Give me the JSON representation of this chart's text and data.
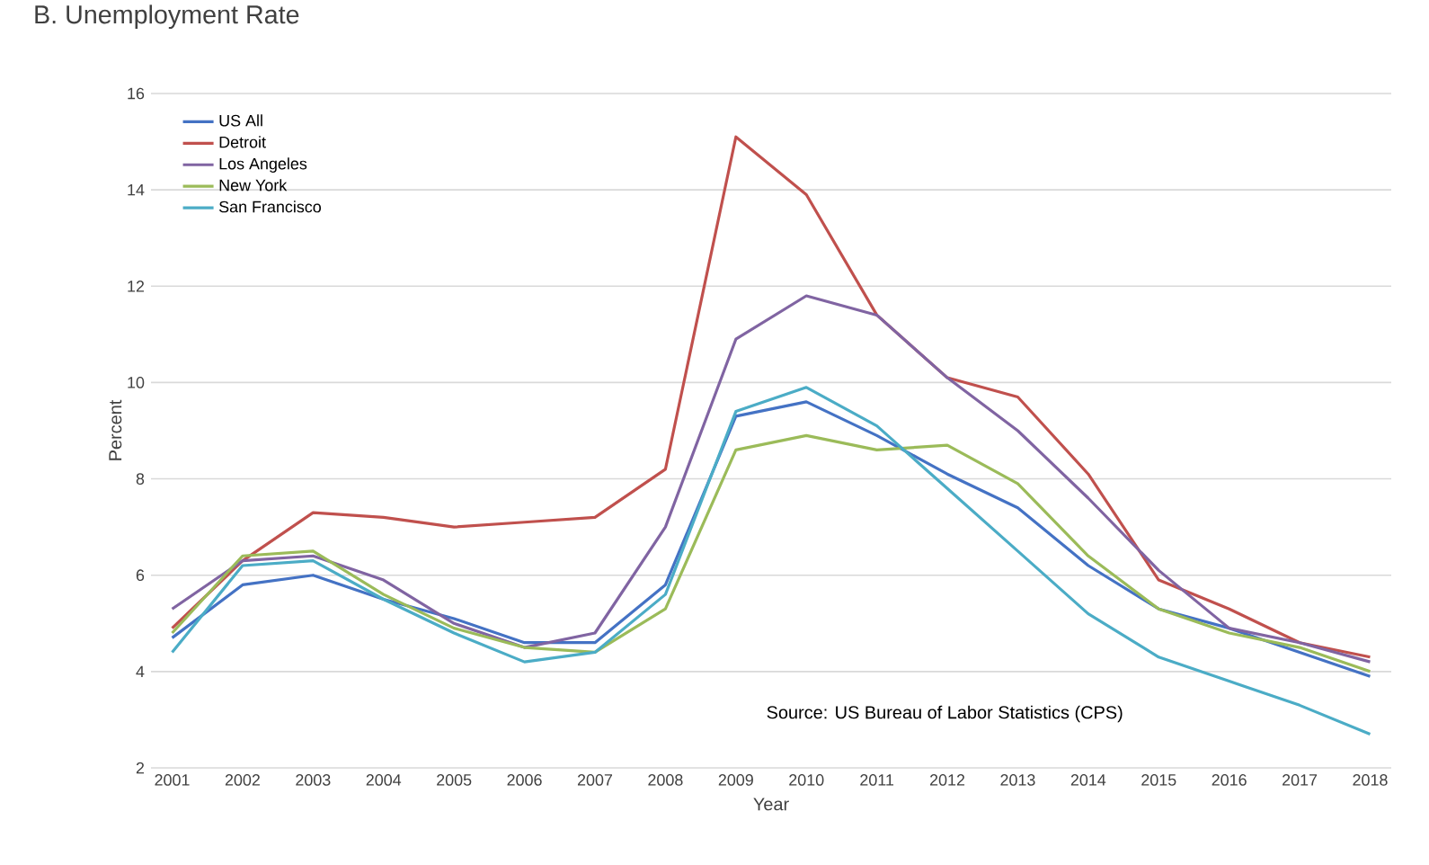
{
  "chart_data": {
    "type": "line",
    "title": "B. Unemployment Rate",
    "xlabel": "Year",
    "ylabel": "Percent",
    "categories": [
      "2001",
      "2002",
      "2003",
      "2004",
      "2005",
      "2006",
      "2007",
      "2008",
      "2009",
      "2010",
      "2011",
      "2012",
      "2013",
      "2014",
      "2015",
      "2016",
      "2017",
      "2018"
    ],
    "series": [
      {
        "name": "US All",
        "color": "#4472c4",
        "values": [
          4.7,
          5.8,
          6.0,
          5.5,
          5.1,
          4.6,
          4.6,
          5.8,
          9.3,
          9.6,
          8.9,
          8.1,
          7.4,
          6.2,
          5.3,
          4.9,
          4.4,
          3.9
        ]
      },
      {
        "name": "Detroit",
        "color": "#c0504d",
        "values": [
          4.9,
          6.3,
          7.3,
          7.2,
          7.0,
          7.1,
          7.2,
          8.2,
          15.1,
          13.9,
          11.4,
          10.1,
          9.7,
          8.1,
          5.9,
          5.3,
          4.6,
          4.3
        ]
      },
      {
        "name": "Los Angeles",
        "color": "#8064a2",
        "values": [
          5.3,
          6.3,
          6.4,
          5.9,
          5.0,
          4.5,
          4.8,
          7.0,
          10.9,
          11.8,
          11.4,
          10.1,
          9.0,
          7.6,
          6.1,
          4.9,
          4.6,
          4.2
        ]
      },
      {
        "name": "New York",
        "color": "#9bbb59",
        "values": [
          4.8,
          6.4,
          6.5,
          5.6,
          4.9,
          4.5,
          4.4,
          5.3,
          8.6,
          8.9,
          8.6,
          8.7,
          7.9,
          6.4,
          5.3,
          4.8,
          4.5,
          4.0
        ]
      },
      {
        "name": "San Francisco",
        "color": "#4bacc6",
        "values": [
          4.4,
          6.2,
          6.3,
          5.5,
          4.8,
          4.2,
          4.4,
          5.6,
          9.4,
          9.9,
          9.1,
          7.8,
          6.5,
          5.2,
          4.3,
          3.8,
          3.3,
          2.7
        ]
      }
    ],
    "ylim": [
      2,
      16
    ],
    "yticks": [
      2,
      4,
      6,
      8,
      10,
      12,
      14,
      16
    ],
    "grid": "y",
    "legend": "top left",
    "marker": "none",
    "line_style": "solid",
    "annotations": [
      "Source: US Bureau of Labor Statistics (CPS)"
    ]
  }
}
